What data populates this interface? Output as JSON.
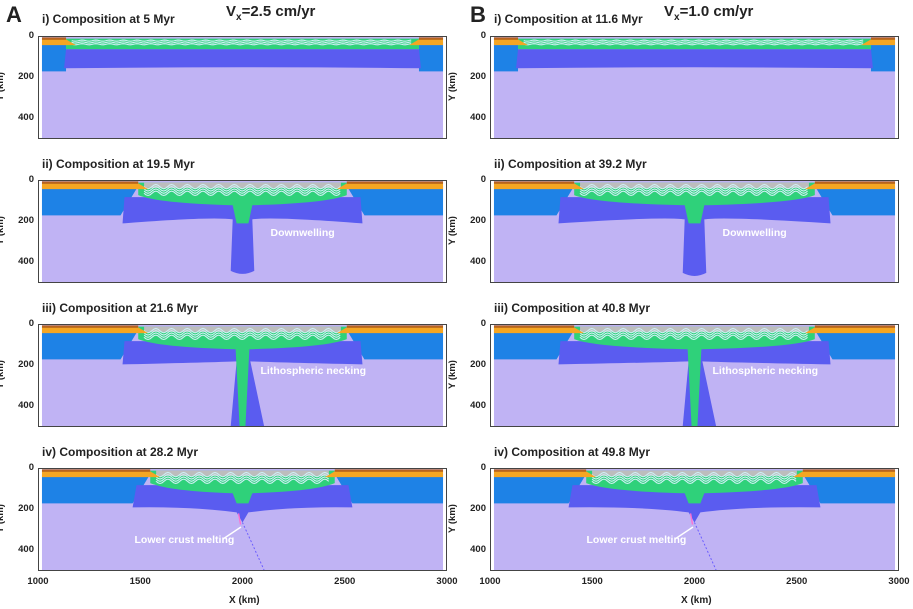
{
  "columns": [
    {
      "letter": "A",
      "velocity_prefix": "V",
      "velocity_sub": "x",
      "velocity_value": "=2.5 cm/yr",
      "panels": [
        {
          "title": "i) Composition at 5 Myr",
          "stage": "i",
          "annotation": ""
        },
        {
          "title": "ii) Composition at 19.5 Myr",
          "stage": "ii",
          "annotation": "Downwelling"
        },
        {
          "title": "iii) Composition at 21.6 Myr",
          "stage": "iii",
          "annotation": "Lithospheric necking"
        },
        {
          "title": "iv) Composition at 28.2 Myr",
          "stage": "iv",
          "annotation": "Lower crust melting"
        }
      ]
    },
    {
      "letter": "B",
      "velocity_prefix": "V",
      "velocity_sub": "x",
      "velocity_value": "=1.0 cm/yr",
      "panels": [
        {
          "title": "i) Composition at 11.6 Myr",
          "stage": "i",
          "annotation": ""
        },
        {
          "title": "ii) Composition at 39.2 Myr",
          "stage": "ii",
          "annotation": "Downwelling"
        },
        {
          "title": "iii) Composition at 40.8 Myr",
          "stage": "iii",
          "annotation": "Lithospheric necking"
        },
        {
          "title": "iv) Composition at 49.8 Myr",
          "stage": "iv",
          "annotation": "Lower crust melting"
        }
      ]
    }
  ],
  "axes": {
    "ylabel": "Y (km)",
    "xlabel": "X (km)",
    "yticks": [
      "0",
      "200",
      "400"
    ],
    "xticks": [
      "1000",
      "1500",
      "2000",
      "2500",
      "3000"
    ],
    "xlim": [
      1000,
      3000
    ],
    "ylim": [
      0,
      500
    ]
  },
  "colors": {
    "asthenosphere": "#c0b3f4",
    "mantle_lithosphere": "#5a5cf0",
    "craton": "#1e82e6",
    "crust_green": "#2fd17a",
    "crust_orange": "#f5a623",
    "crust_brown": "#b8641e",
    "folds_light": "#cfeff5",
    "sediment_grey": "#bdbdbd"
  }
}
